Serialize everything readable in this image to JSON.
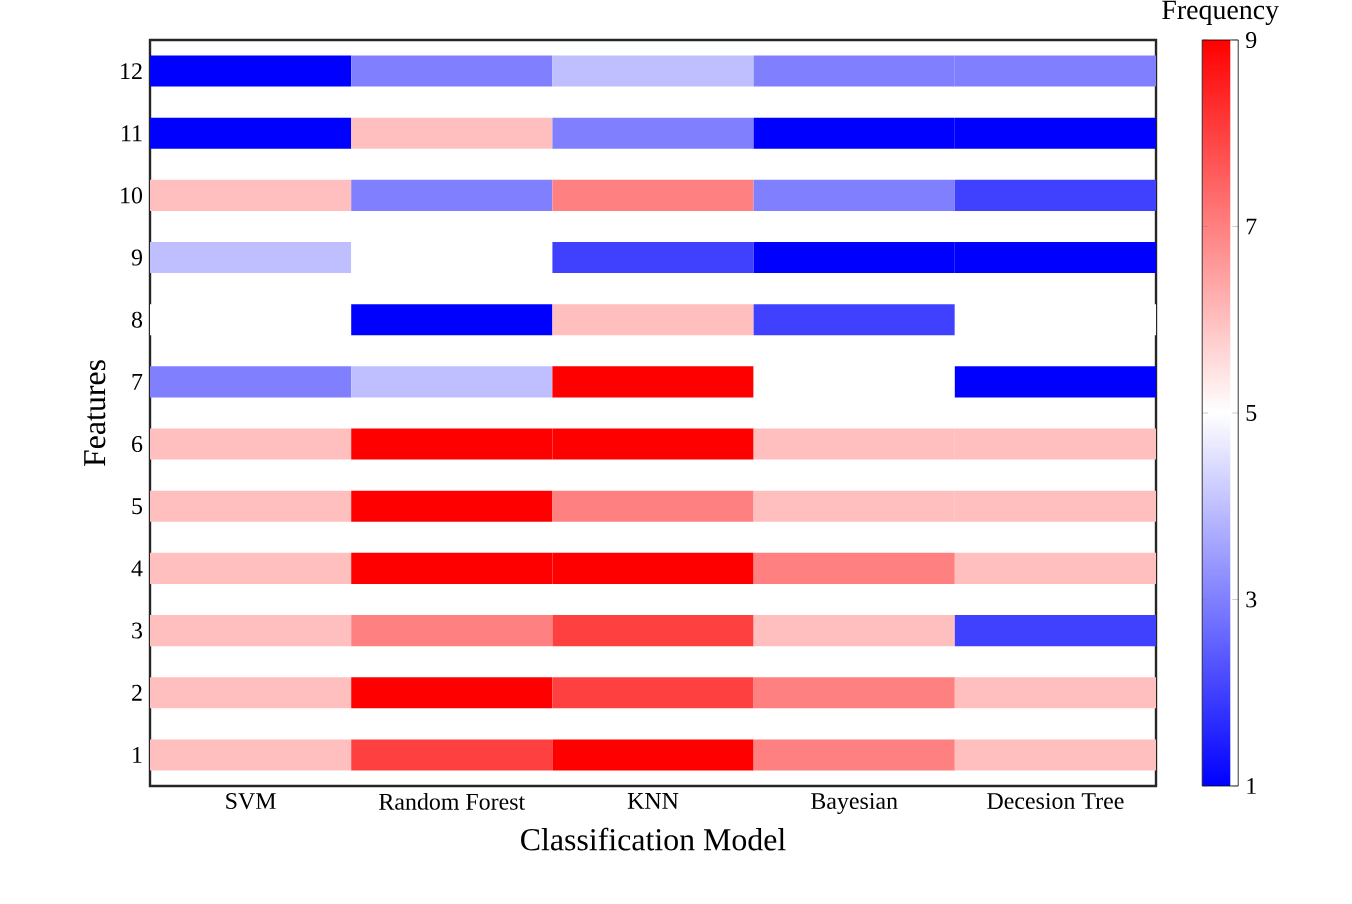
{
  "chart_data": {
    "type": "heatmap",
    "xlabel": "Classification Model",
    "ylabel": "Features",
    "clabel": "Frequency",
    "categories": [
      "SVM",
      "Random Forest",
      "KNN",
      "Bayesian",
      "Decesion Tree"
    ],
    "y_categories": [
      "12",
      "11",
      "10",
      "9",
      "8",
      "7",
      "6",
      "5",
      "4",
      "3",
      "2",
      "1"
    ],
    "cells": [
      [
        1,
        3,
        4,
        3,
        3
      ],
      [
        1,
        6,
        3,
        1,
        1
      ],
      [
        6,
        3,
        7,
        3,
        2
      ],
      [
        4,
        5,
        2,
        1,
        1
      ],
      [
        5,
        1,
        6,
        2,
        5
      ],
      [
        3,
        4,
        9,
        5,
        1
      ],
      [
        6,
        9,
        9,
        6,
        6
      ],
      [
        6,
        9,
        7,
        6,
        6
      ],
      [
        6,
        9,
        9,
        7,
        6
      ],
      [
        6,
        7,
        8,
        6,
        2
      ],
      [
        6,
        9,
        8,
        7,
        6
      ],
      [
        6,
        8,
        9,
        7,
        6
      ]
    ],
    "clim": [
      1,
      9
    ],
    "cticks": [
      1,
      3,
      5,
      7,
      9
    ]
  }
}
